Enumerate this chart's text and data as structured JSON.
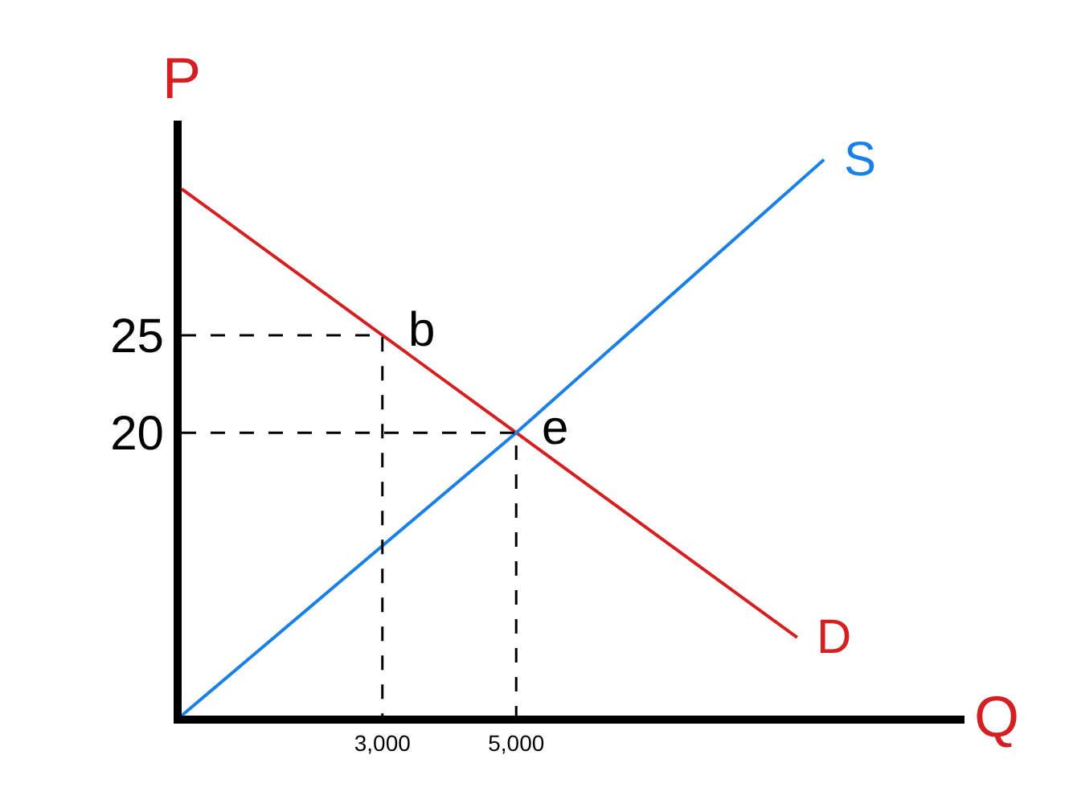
{
  "chart_data": {
    "type": "line",
    "xlabel": "Q",
    "ylabel": "P",
    "xlim": [
      0,
      11700
    ],
    "ylim": [
      5.5,
      36
    ],
    "xticks": [
      {
        "value": 3000,
        "label": "3,000"
      },
      {
        "value": 5000,
        "label": "5,000"
      }
    ],
    "yticks": [
      20,
      25
    ],
    "legend": false,
    "marker": "none",
    "series": [
      {
        "name": "D",
        "color": "#d42020",
        "x": [
          0,
          3000,
          5000,
          9200
        ],
        "values": [
          32.5,
          25,
          20,
          9.5
        ],
        "line_style": "solid"
      },
      {
        "name": "S",
        "color": "#1a80e8",
        "x": [
          0,
          5000,
          9600
        ],
        "values": [
          5.5,
          20,
          34
        ],
        "line_style": "solid"
      },
      {
        "color": "#000000",
        "x": [
          0,
          3000,
          3000
        ],
        "values": [
          25,
          25,
          5.5
        ],
        "line_style": "dashed"
      },
      {
        "color": "#000000",
        "x": [
          0,
          5000,
          5000
        ],
        "values": [
          20,
          20,
          5.5
        ],
        "line_style": "dashed"
      }
    ],
    "annotations": [
      {
        "text": "b",
        "x": 3000,
        "y": 25
      },
      {
        "text": "e",
        "x": 5000,
        "y": 20
      }
    ]
  }
}
